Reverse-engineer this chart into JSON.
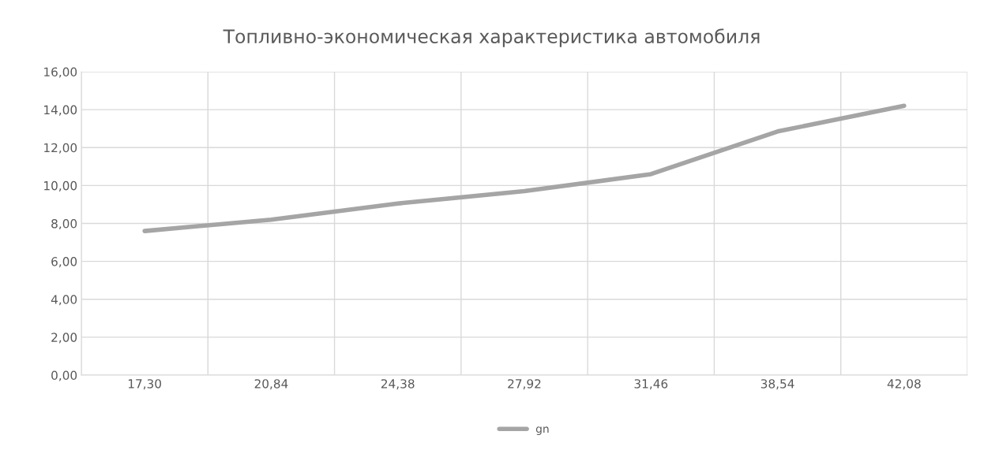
{
  "chart_data": {
    "type": "line",
    "title": "Топливно-экономическая характеристика автомобиля",
    "categories": [
      "17,30",
      "20,84",
      "24,38",
      "27,92",
      "31,46",
      "38,54",
      "42,08"
    ],
    "series": [
      {
        "name": "gn",
        "color": "#a5a5a5",
        "values": [
          7.6,
          8.2,
          9.05,
          9.7,
          10.6,
          12.85,
          14.2
        ]
      }
    ],
    "ylim": [
      0,
      16
    ],
    "yticks": [
      {
        "value": 0,
        "label": "0,00"
      },
      {
        "value": 2,
        "label": "2,00"
      },
      {
        "value": 4,
        "label": "4,00"
      },
      {
        "value": 6,
        "label": "6,00"
      },
      {
        "value": 8,
        "label": "8,00"
      },
      {
        "value": 10,
        "label": "10,00"
      },
      {
        "value": 12,
        "label": "12,00"
      },
      {
        "value": 14,
        "label": "14,00"
      },
      {
        "value": 16,
        "label": "16,00"
      }
    ],
    "grid": true,
    "legend": "bottom",
    "marker": "none",
    "line_style": "solid"
  }
}
